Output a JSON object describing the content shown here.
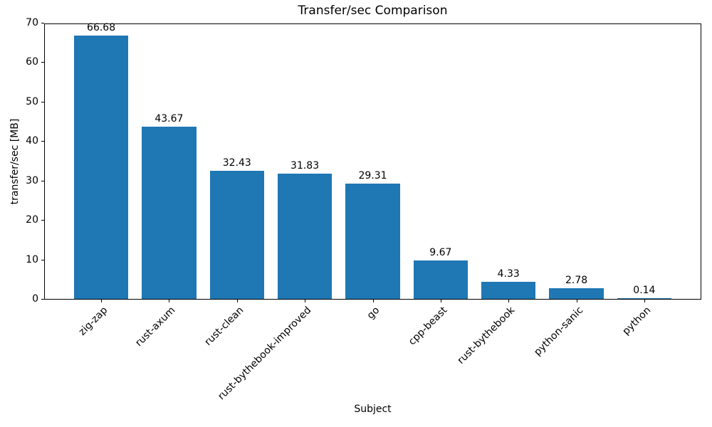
{
  "chart_data": {
    "type": "bar",
    "title": "Transfer/sec Comparison",
    "xlabel": "Subject",
    "ylabel": "transfer/sec [MB]",
    "categories": [
      "zig-zap",
      "rust-axum",
      "rust-clean",
      "rust-bythebook-improved",
      "go",
      "cpp-beast",
      "rust-bythebook",
      "python-sanic",
      "python"
    ],
    "values": [
      66.68,
      43.67,
      32.43,
      31.83,
      29.31,
      9.67,
      4.33,
      2.78,
      0.14
    ],
    "bar_labels": [
      "66.68",
      "43.67",
      "32.43",
      "31.83",
      "29.31",
      "9.67",
      "4.33",
      "2.78",
      "0.14"
    ],
    "ylim": [
      0,
      70
    ],
    "yticks": [
      0,
      10,
      20,
      30,
      40,
      50,
      60,
      70
    ],
    "bar_color": "#1f77b4",
    "grid": false,
    "legend_position": "none"
  }
}
